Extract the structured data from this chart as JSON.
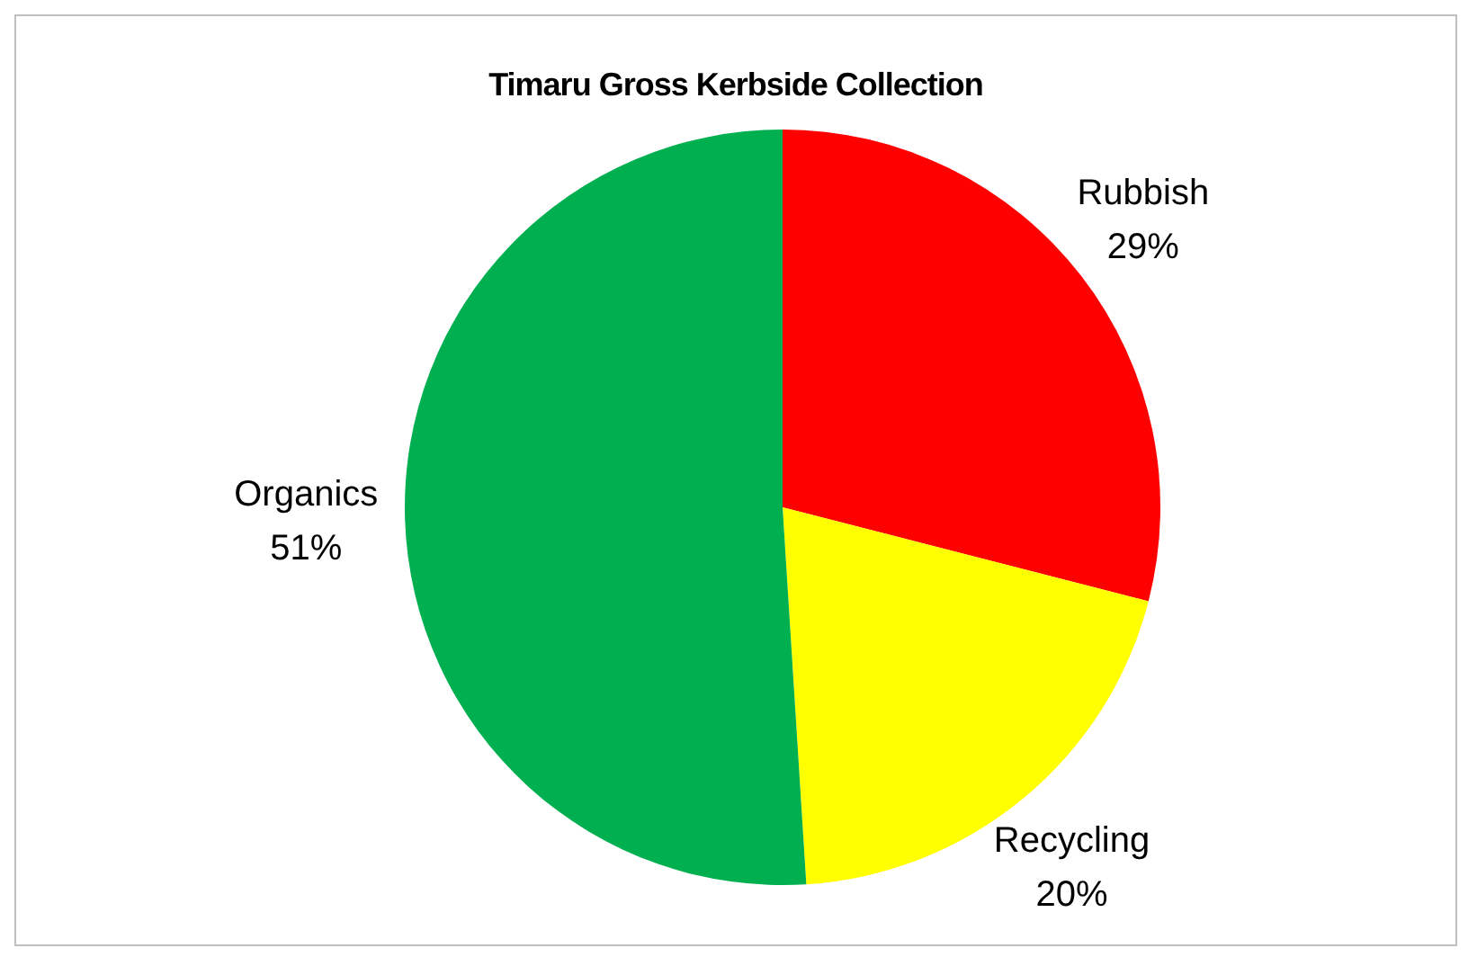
{
  "chart_data": {
    "type": "pie",
    "title": "Timaru Gross Kerbside Collection",
    "categories": [
      "Rubbish",
      "Recycling",
      "Organics"
    ],
    "values": [
      29,
      20,
      51
    ],
    "value_labels": [
      "29%",
      "20%",
      "51%"
    ],
    "colors": [
      "#ff0000",
      "#ffff00",
      "#00b050"
    ]
  }
}
